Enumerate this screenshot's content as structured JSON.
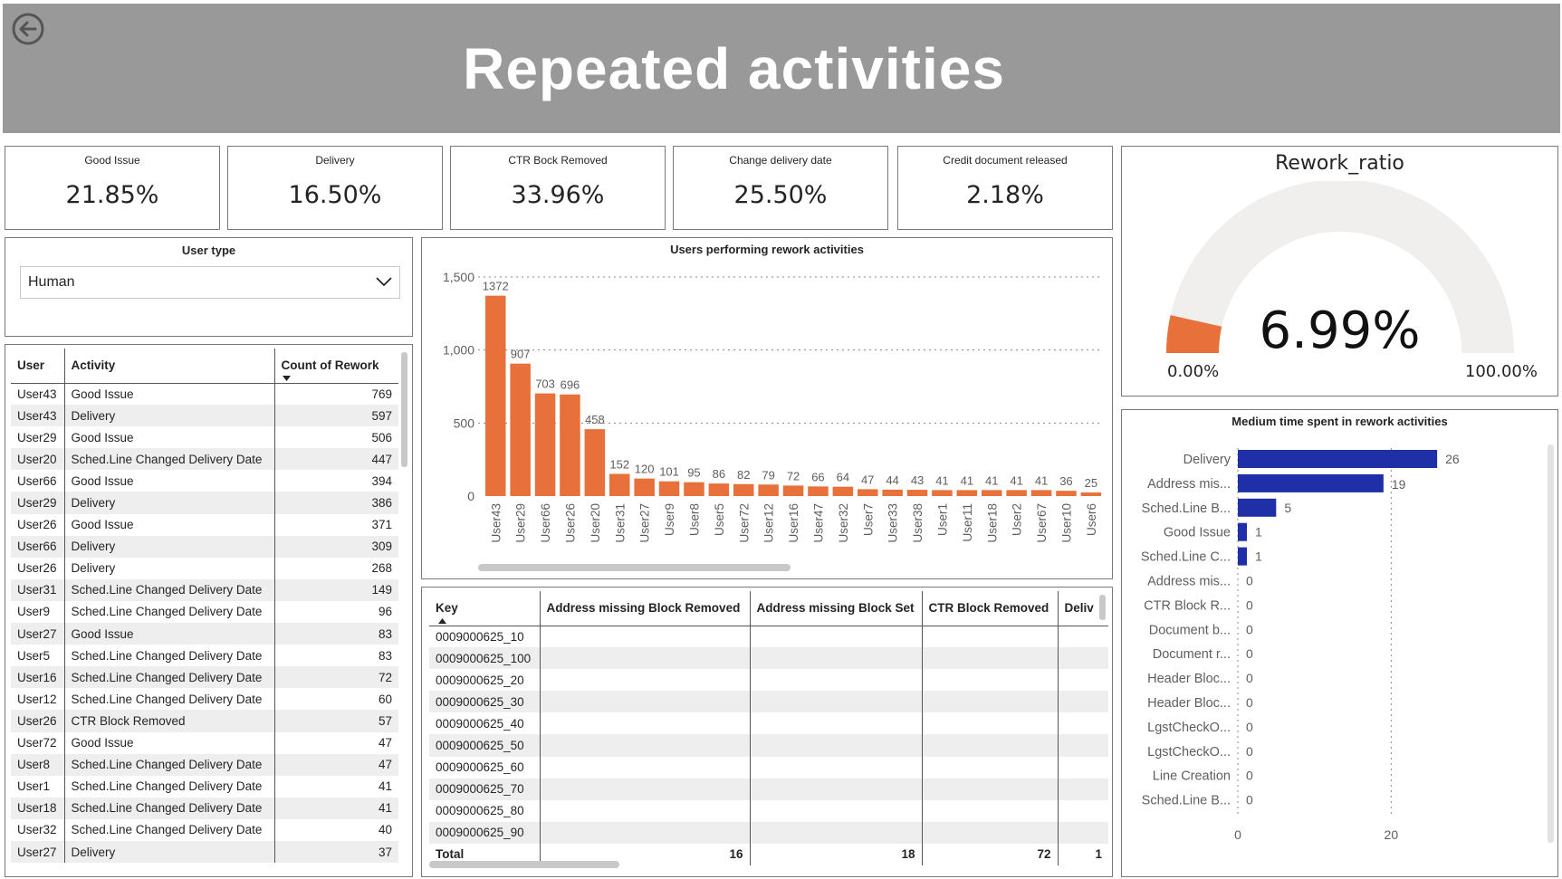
{
  "header": {
    "title": "Repeated activities"
  },
  "kpis": [
    {
      "label": "Good Issue",
      "value": "21.85%"
    },
    {
      "label": "Delivery",
      "value": "16.50%"
    },
    {
      "label": "CTR Bock Removed",
      "value": "33.96%"
    },
    {
      "label": "Change delivery date",
      "value": "25.50%"
    },
    {
      "label": "Credit document released",
      "value": "2.18%"
    }
  ],
  "slicer": {
    "title": "User type",
    "selected": "Human"
  },
  "rework_table": {
    "columns": [
      "User",
      "Activity",
      "Count of Rework"
    ],
    "rows": [
      [
        "User43",
        "Good Issue",
        "769"
      ],
      [
        "User43",
        "Delivery",
        "597"
      ],
      [
        "User29",
        "Good Issue",
        "506"
      ],
      [
        "User20",
        "Sched.Line Changed Delivery Date",
        "447"
      ],
      [
        "User66",
        "Good Issue",
        "394"
      ],
      [
        "User29",
        "Delivery",
        "386"
      ],
      [
        "User26",
        "Good Issue",
        "371"
      ],
      [
        "User66",
        "Delivery",
        "309"
      ],
      [
        "User26",
        "Delivery",
        "268"
      ],
      [
        "User31",
        "Sched.Line Changed Delivery Date",
        "149"
      ],
      [
        "User9",
        "Sched.Line Changed Delivery Date",
        "96"
      ],
      [
        "User27",
        "Good Issue",
        "83"
      ],
      [
        "User5",
        "Sched.Line Changed Delivery Date",
        "83"
      ],
      [
        "User16",
        "Sched.Line Changed Delivery Date",
        "72"
      ],
      [
        "User12",
        "Sched.Line Changed Delivery Date",
        "60"
      ],
      [
        "User26",
        "CTR Block Removed",
        "57"
      ],
      [
        "User72",
        "Good Issue",
        "47"
      ],
      [
        "User8",
        "Sched.Line Changed Delivery Date",
        "47"
      ],
      [
        "User1",
        "Sched.Line Changed Delivery Date",
        "41"
      ],
      [
        "User18",
        "Sched.Line Changed Delivery Date",
        "41"
      ],
      [
        "User32",
        "Sched.Line Changed Delivery Date",
        "40"
      ],
      [
        "User27",
        "Delivery",
        "37"
      ]
    ]
  },
  "key_table": {
    "columns": [
      "Key",
      "Address missing Block Removed",
      "Address missing Block Set",
      "CTR Block Removed",
      "Deliv"
    ],
    "rows": [
      [
        "0009000625_10",
        "",
        "",
        "",
        ""
      ],
      [
        "0009000625_100",
        "",
        "",
        "",
        ""
      ],
      [
        "0009000625_20",
        "",
        "",
        "",
        ""
      ],
      [
        "0009000625_30",
        "",
        "",
        "",
        ""
      ],
      [
        "0009000625_40",
        "",
        "",
        "",
        ""
      ],
      [
        "0009000625_50",
        "",
        "",
        "",
        ""
      ],
      [
        "0009000625_60",
        "",
        "",
        "",
        ""
      ],
      [
        "0009000625_70",
        "",
        "",
        "",
        ""
      ],
      [
        "0009000625_80",
        "",
        "",
        "",
        ""
      ],
      [
        "0009000625_90",
        "",
        "",
        "",
        ""
      ]
    ],
    "total": [
      "Total",
      "16",
      "18",
      "72",
      "1"
    ]
  },
  "gauge": {
    "title": "Rework_ratio",
    "value_label": "6.99%",
    "value": 0.0699,
    "min_label": "0.00%",
    "max_label": "100.00%"
  },
  "colors": {
    "header_bg": "#999999",
    "bar_orange": "#E8703A",
    "bar_blue": "#1F2FA8",
    "gauge_track": "#F0EFEE"
  },
  "chart_data": [
    {
      "type": "bar",
      "title": "Users performing rework activities",
      "categories": [
        "User43",
        "User29",
        "User66",
        "User26",
        "User20",
        "User31",
        "User27",
        "User9",
        "User8",
        "User5",
        "User72",
        "User12",
        "User16",
        "User47",
        "User32",
        "User7",
        "User33",
        "User38",
        "User1",
        "User11",
        "User18",
        "User2",
        "User67",
        "User10",
        "User6"
      ],
      "values": [
        1372,
        907,
        703,
        696,
        458,
        152,
        120,
        101,
        95,
        86,
        82,
        79,
        72,
        66,
        64,
        47,
        44,
        43,
        41,
        41,
        41,
        41,
        41,
        36,
        25
      ],
      "yticks": [
        "0",
        "500",
        "1,000",
        "1,500"
      ],
      "ylim": [
        0,
        1500
      ],
      "grid": true
    },
    {
      "type": "bar",
      "orientation": "horizontal",
      "title": "Medium time spent in rework activities",
      "categories": [
        "Delivery",
        "Address mis...",
        "Sched.Line B...",
        "Good Issue",
        "Sched.Line C...",
        "Address mis...",
        "CTR Block R...",
        "Document b...",
        "Document r...",
        "Header Bloc...",
        "Header Bloc...",
        "LgstCheckO...",
        "LgstCheckO...",
        "Line Creation",
        "Sched.Line B..."
      ],
      "values": [
        26,
        19,
        5,
        1,
        1,
        0,
        0,
        0,
        0,
        0,
        0,
        0,
        0,
        0,
        0
      ],
      "xticks": [
        "0",
        "20"
      ],
      "xlim": [
        0,
        30
      ],
      "grid": true
    }
  ]
}
